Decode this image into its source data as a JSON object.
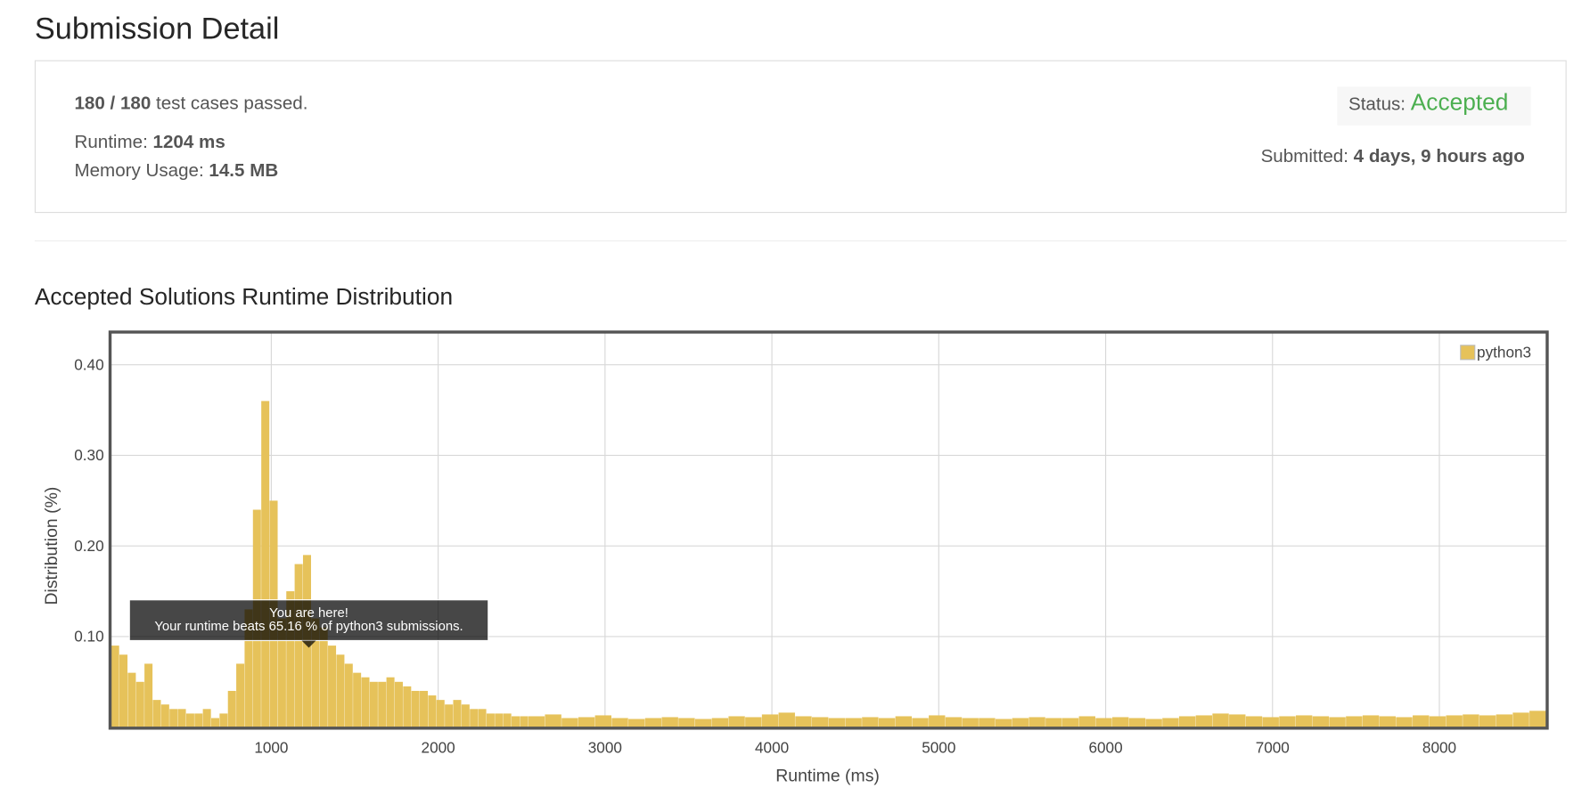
{
  "header": {
    "title": "Submission Detail"
  },
  "summary": {
    "passed": "180 / 180",
    "passed_suffix": "test cases passed.",
    "runtime_label": "Runtime:",
    "runtime_value": "1204 ms",
    "memory_label": "Memory Usage:",
    "memory_value": "14.5 MB",
    "status_label": "Status:",
    "status_value": "Accepted",
    "submitted_label": "Submitted:",
    "submitted_value": "4 days, 9 hours ago"
  },
  "section_title": "Accepted Solutions Runtime Distribution",
  "chart_data": {
    "type": "histogram",
    "xlabel": "Runtime (ms)",
    "ylabel": "Distribution (%)",
    "series_name": "python3",
    "color": "#e6c25a",
    "legend": "upper right",
    "grid": true,
    "annotation": [
      "You are here!",
      "Your runtime beats 65.16 % of python3 submissions."
    ],
    "xlim": [
      40,
      8640
    ],
    "ylim": [
      0,
      0.435
    ],
    "xticks": [
      1000,
      2000,
      3000,
      4000,
      5000,
      6000,
      7000,
      8000
    ],
    "yticks": [
      {
        "value": 0.1,
        "label": "0.10"
      },
      {
        "value": 0.2,
        "label": "0.20"
      },
      {
        "value": 0.3,
        "label": "0.30"
      },
      {
        "value": 0.4,
        "label": "0.40"
      }
    ],
    "bins": [
      40,
      90,
      140,
      190,
      240,
      290,
      340,
      390,
      440,
      490,
      540,
      590,
      640,
      690,
      740,
      790,
      840,
      890,
      940,
      990,
      1040,
      1090,
      1140,
      1190,
      1240,
      1290,
      1340,
      1390,
      1440,
      1490,
      1540,
      1590,
      1640,
      1690,
      1740,
      1790,
      1840,
      1890,
      1940,
      1990,
      2040,
      2090,
      2140,
      2190,
      2240,
      2290,
      2340,
      2390,
      2440,
      2490,
      2540,
      2640,
      2740,
      2840,
      2940,
      3040,
      3140,
      3240,
      3340,
      3440,
      3540,
      3640,
      3740,
      3840,
      3940,
      4040,
      4140,
      4240,
      4340,
      4440,
      4540,
      4640,
      4740,
      4840,
      4940,
      5040,
      5140,
      5240,
      5340,
      5440,
      5540,
      5640,
      5740,
      5840,
      5940,
      6040,
      6140,
      6240,
      6340,
      6440,
      6540,
      6640,
      6740,
      6840,
      6940,
      7040,
      7140,
      7240,
      7340,
      7440,
      7540,
      7640,
      7740,
      7840,
      7940,
      8040,
      8140,
      8240,
      8340,
      8440,
      8540,
      8640
    ],
    "values": [
      0.09,
      0.08,
      0.06,
      0.05,
      0.07,
      0.03,
      0.025,
      0.02,
      0.02,
      0.015,
      0.015,
      0.02,
      0.01,
      0.015,
      0.04,
      0.07,
      0.13,
      0.24,
      0.36,
      0.25,
      0.12,
      0.15,
      0.18,
      0.19,
      0.12,
      0.11,
      0.09,
      0.08,
      0.07,
      0.06,
      0.055,
      0.05,
      0.05,
      0.055,
      0.05,
      0.045,
      0.04,
      0.04,
      0.035,
      0.03,
      0.025,
      0.03,
      0.025,
      0.02,
      0.02,
      0.015,
      0.015,
      0.015,
      0.012,
      0.012,
      0.012,
      0.014,
      0.01,
      0.011,
      0.013,
      0.01,
      0.009,
      0.01,
      0.011,
      0.01,
      0.009,
      0.01,
      0.012,
      0.011,
      0.014,
      0.016,
      0.012,
      0.011,
      0.01,
      0.01,
      0.011,
      0.01,
      0.012,
      0.01,
      0.013,
      0.011,
      0.01,
      0.01,
      0.009,
      0.01,
      0.011,
      0.01,
      0.01,
      0.012,
      0.01,
      0.011,
      0.01,
      0.009,
      0.01,
      0.012,
      0.013,
      0.015,
      0.014,
      0.012,
      0.011,
      0.012,
      0.013,
      0.012,
      0.011,
      0.012,
      0.013,
      0.012,
      0.011,
      0.013,
      0.012,
      0.013,
      0.014,
      0.013,
      0.014,
      0.016,
      0.018
    ]
  }
}
